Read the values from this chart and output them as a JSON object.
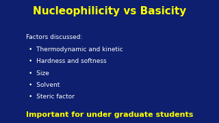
{
  "background_color": "#0d1f6e",
  "title": "Nucleophilicity vs Basicity",
  "title_color": "#ffff00",
  "title_fontsize": 11,
  "subtitle": "Factors discussed:",
  "subtitle_color": "#ffffff",
  "subtitle_fontsize": 6.5,
  "bullet_items": [
    "Thermodynamic and kinetic",
    "Hardness and softness",
    "Size",
    "Solvent",
    "Steric factor"
  ],
  "bullet_color": "#ffffff",
  "bullet_fontsize": 6.5,
  "footer": "Important for under graduate students",
  "footer_color": "#ffff00",
  "footer_fontsize": 8,
  "footer_fontstyle": "bold"
}
